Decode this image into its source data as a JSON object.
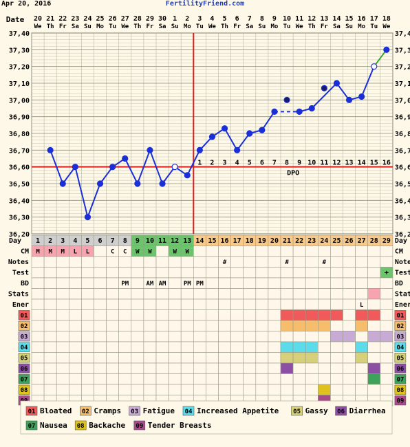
{
  "header": {
    "date": "Apr 20, 2016",
    "site": "FertilityFriend.com"
  },
  "chart_data": {
    "type": "line",
    "ylabel_left": "Date",
    "dates": [
      "20",
      "21",
      "22",
      "23",
      "24",
      "25",
      "26",
      "27",
      "28",
      "29",
      "30",
      "1",
      "2",
      "3",
      "4",
      "5",
      "6",
      "7",
      "8",
      "9",
      "10",
      "11",
      "12",
      "13",
      "14",
      "15",
      "16",
      "17",
      "18"
    ],
    "weekdays": [
      "We",
      "Th",
      "Fr",
      "Sa",
      "Su",
      "Mo",
      "Tu",
      "We",
      "Th",
      "Fr",
      "Sa",
      "Su",
      "Mo",
      "Tu",
      "We",
      "Th",
      "Fr",
      "Sa",
      "Su",
      "Mo",
      "Tu",
      "We",
      "Th",
      "Fr",
      "Sa",
      "Su",
      "Mo",
      "Tu",
      "We"
    ],
    "ylim": [
      36.2,
      37.4
    ],
    "yticks": [
      "37,40",
      "37,30",
      "37,20",
      "37,10",
      "37,00",
      "36,90",
      "36,80",
      "36,70",
      "36,60",
      "36,50",
      "36,40",
      "36,30",
      "36,20"
    ],
    "temps": [
      null,
      36.7,
      36.5,
      36.6,
      36.3,
      36.5,
      36.6,
      36.65,
      36.5,
      36.7,
      36.5,
      36.6,
      36.55,
      36.7,
      36.78,
      36.83,
      36.7,
      36.8,
      36.82,
      36.93,
      37.0,
      36.93,
      36.95,
      37.07,
      37.1,
      37.0,
      37.02,
      37.2,
      37.3
    ],
    "open_points": [
      11,
      27
    ],
    "detached_points": [
      20,
      23
    ],
    "dashed_segments": [
      [
        19,
        21
      ],
      [
        23,
        24
      ]
    ],
    "coverline": 36.6,
    "ovulation_index": 12,
    "dpo_labels": [
      "1",
      "2",
      "3",
      "4",
      "5",
      "6",
      "7",
      "8",
      "9",
      "10",
      "11",
      "12",
      "13",
      "14",
      "15",
      "16"
    ],
    "dpo_text": "DPO",
    "days": [
      "1",
      "2",
      "3",
      "4",
      "5",
      "6",
      "7",
      "8",
      "9",
      "10",
      "11",
      "12",
      "13",
      "14",
      "15",
      "16",
      "17",
      "18",
      "19",
      "20",
      "21",
      "22",
      "23",
      "24",
      "25",
      "26",
      "27",
      "28",
      "29"
    ],
    "day_label": "Day",
    "row_labels": [
      "CM",
      "Notes",
      "Test",
      "BD",
      "Stats",
      "Ener"
    ],
    "cm": [
      "M",
      "M",
      "M",
      "L",
      "L",
      "",
      "C",
      "C",
      "W",
      "W",
      "",
      "W",
      "W",
      "",
      "",
      "",
      "",
      "",
      "",
      "",
      "",
      "",
      "",
      "",
      "",
      "",
      "",
      "",
      ""
    ],
    "notes": {
      "15": "#",
      "20": "#",
      "23": "#"
    },
    "test": {
      "28": "+"
    },
    "bd": {
      "7": "PM",
      "9": "AM",
      "10": "AM",
      "12": "PM",
      "13": "PM"
    },
    "stats_marked": [
      27
    ],
    "ener": {
      "26": "L"
    },
    "symptom_rows": [
      {
        "code": "01",
        "color": "#f05a5a",
        "days": [
          20,
          21,
          22,
          23,
          24,
          26,
          27
        ]
      },
      {
        "code": "02",
        "color": "#f5bd6c",
        "days": [
          20,
          21,
          22,
          23,
          26
        ]
      },
      {
        "code": "03",
        "color": "#c7abd4",
        "days": [
          24,
          25,
          27,
          28
        ]
      },
      {
        "code": "04",
        "color": "#5cdcea",
        "days": [
          20,
          21,
          22,
          26
        ]
      },
      {
        "code": "05",
        "color": "#d6d07a",
        "days": [
          20,
          21,
          22,
          26
        ]
      },
      {
        "code": "06",
        "color": "#8c4fa3",
        "days": [
          20,
          27
        ]
      },
      {
        "code": "07",
        "color": "#3ea35a",
        "days": [
          27
        ]
      },
      {
        "code": "08",
        "color": "#e0c21c",
        "days": [
          23
        ]
      },
      {
        "code": "09",
        "color": "#a84a8a",
        "days": [
          23
        ]
      }
    ],
    "legend": [
      {
        "code": "01",
        "label": "Bloated",
        "color": "#f05a5a"
      },
      {
        "code": "02",
        "label": "Cramps",
        "color": "#f5bd6c"
      },
      {
        "code": "03",
        "label": "Fatigue",
        "color": "#c7abd4"
      },
      {
        "code": "04",
        "label": "Increased Appetite",
        "color": "#5cdcea"
      },
      {
        "code": "05",
        "label": "Gassy",
        "color": "#d6d07a"
      },
      {
        "code": "06",
        "label": "Diarrhea",
        "color": "#8c4fa3"
      },
      {
        "code": "07",
        "label": "Nausea",
        "color": "#3ea35a"
      },
      {
        "code": "08",
        "label": "Backache",
        "color": "#e0c21c"
      },
      {
        "code": "09",
        "label": "Tender Breasts",
        "color": "#a84a8a"
      }
    ],
    "colors": {
      "line": "#1a2fd8",
      "coverline": "#d81e1e",
      "last_segment": "#3aa52a",
      "grid": "#b8b8a0",
      "plot_bg": "#fdf8e8",
      "day_gray": "#cfcfcf",
      "day_green": "#6cc46c",
      "day_orange": "#f9c98a",
      "cm_pink": "#f7a4ae"
    }
  }
}
